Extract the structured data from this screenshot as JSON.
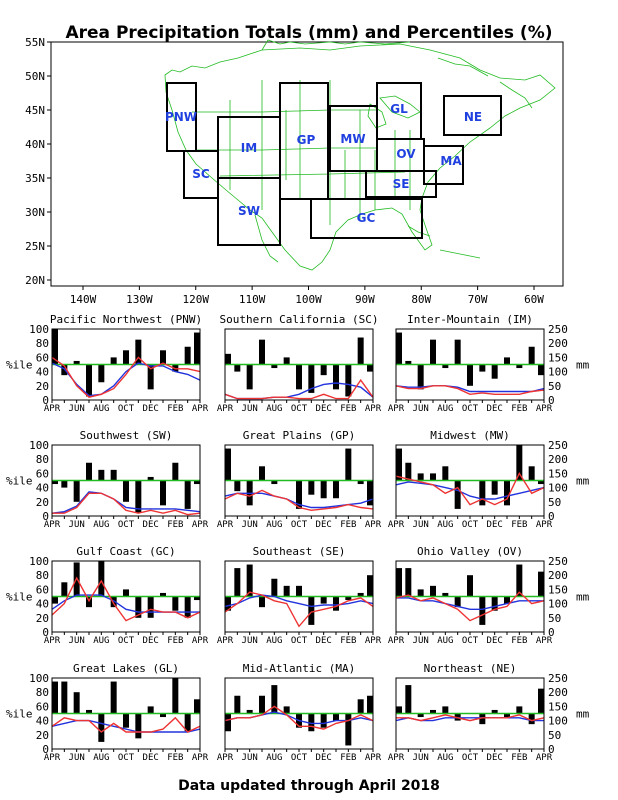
{
  "page": {
    "title": "Area Precipitation Totals (mm) and Percentiles (%)",
    "footer": "Data updated through April 2018"
  },
  "map": {
    "lat_labels": [
      "55N",
      "50N",
      "45N",
      "40N",
      "35N",
      "30N",
      "25N",
      "20N"
    ],
    "lon_labels": [
      "140W",
      "130W",
      "120W",
      "110W",
      "100W",
      "90W",
      "80W",
      "70W",
      "60W"
    ],
    "regions": [
      "PNW",
      "SC",
      "IM",
      "SW",
      "GP",
      "MW",
      "GL",
      "OV",
      "SE",
      "GC",
      "MA",
      "NE"
    ]
  },
  "chart_data": [
    {
      "type": "bar+line",
      "title": "Pacific Northwest (PNW)",
      "ylabel": "%ile",
      "ylabel_right": "mm",
      "ylim": [
        0,
        100
      ],
      "ylim_right": [
        0,
        250
      ],
      "ref_line": 50,
      "x_ticks": [
        "APR",
        "JUN",
        "AUG",
        "OCT",
        "DEC",
        "FEB",
        "APR"
      ],
      "percentile_bars": [
        100,
        35,
        55,
        5,
        25,
        60,
        70,
        85,
        15,
        70,
        40,
        75,
        95
      ],
      "mm_red": [
        150,
        120,
        50,
        10,
        20,
        40,
        90,
        150,
        110,
        130,
        110,
        110,
        100
      ],
      "mm_blue": [
        130,
        110,
        55,
        15,
        20,
        50,
        100,
        130,
        120,
        120,
        100,
        90,
        70
      ]
    },
    {
      "type": "bar+line",
      "title": "Southern California (SC)",
      "ylabel": "%ile",
      "ylabel_right": "mm",
      "ylim": [
        0,
        100
      ],
      "ylim_right": [
        0,
        250
      ],
      "ref_line": 50,
      "x_ticks": [
        "APR",
        "JUN",
        "AUG",
        "OCT",
        "DEC",
        "FEB",
        "APR"
      ],
      "percentile_bars": [
        65,
        40,
        15,
        85,
        45,
        60,
        15,
        10,
        35,
        15,
        5,
        88,
        40
      ],
      "mm_red": [
        20,
        5,
        5,
        5,
        10,
        10,
        5,
        5,
        20,
        5,
        5,
        70,
        10
      ],
      "mm_blue": [
        20,
        5,
        5,
        5,
        10,
        10,
        20,
        40,
        55,
        60,
        55,
        45,
        10
      ]
    },
    {
      "type": "bar+line",
      "title": "Inter-Mountain (IM)",
      "ylabel": "%ile",
      "ylabel_right": "mm",
      "ylim": [
        0,
        100
      ],
      "ylim_right": [
        0,
        250
      ],
      "ref_line": 50,
      "x_ticks": [
        "APR",
        "JUN",
        "AUG",
        "OCT",
        "DEC",
        "FEB",
        "APR"
      ],
      "percentile_bars": [
        95,
        55,
        15,
        85,
        45,
        85,
        20,
        40,
        30,
        60,
        45,
        75,
        35
      ],
      "mm_red": [
        50,
        40,
        40,
        50,
        50,
        40,
        20,
        25,
        20,
        20,
        20,
        30,
        35
      ],
      "mm_blue": [
        50,
        45,
        45,
        50,
        50,
        45,
        30,
        30,
        30,
        30,
        30,
        30,
        40
      ]
    },
    {
      "type": "bar+line",
      "title": "Southwest (SW)",
      "ylabel": "%ile",
      "ylabel_right": "mm",
      "ylim": [
        0,
        100
      ],
      "ylim_right": [
        0,
        250
      ],
      "ref_line": 50,
      "x_ticks": [
        "APR",
        "JUN",
        "AUG",
        "OCT",
        "DEC",
        "FEB",
        "APR"
      ],
      "percentile_bars": [
        45,
        40,
        20,
        75,
        65,
        65,
        20,
        5,
        55,
        15,
        75,
        10,
        45
      ],
      "mm_red": [
        10,
        10,
        30,
        80,
        80,
        60,
        20,
        10,
        20,
        10,
        20,
        5,
        10
      ],
      "mm_blue": [
        10,
        15,
        35,
        85,
        80,
        60,
        30,
        25,
        25,
        25,
        25,
        20,
        15
      ]
    },
    {
      "type": "bar+line",
      "title": "Great Plains (GP)",
      "ylabel": "%ile",
      "ylabel_right": "mm",
      "ylim": [
        0,
        100
      ],
      "ylim_right": [
        0,
        250
      ],
      "ref_line": 50,
      "x_ticks": [
        "APR",
        "JUN",
        "AUG",
        "OCT",
        "DEC",
        "FEB",
        "APR"
      ],
      "percentile_bars": [
        95,
        35,
        15,
        70,
        45,
        50,
        10,
        30,
        25,
        25,
        95,
        45,
        15
      ],
      "mm_red": [
        60,
        80,
        70,
        90,
        70,
        60,
        30,
        20,
        25,
        30,
        40,
        30,
        25
      ],
      "mm_blue": [
        70,
        80,
        80,
        80,
        70,
        60,
        40,
        30,
        30,
        35,
        40,
        45,
        60
      ]
    },
    {
      "type": "bar+line",
      "title": "Midwest (MW)",
      "ylabel": "%ile",
      "ylabel_right": "mm",
      "ylim": [
        0,
        100
      ],
      "ylim_right": [
        0,
        250
      ],
      "ref_line": 50,
      "x_ticks": [
        "APR",
        "JUN",
        "AUG",
        "OCT",
        "DEC",
        "FEB",
        "APR"
      ],
      "percentile_bars": [
        95,
        75,
        60,
        60,
        70,
        10,
        50,
        15,
        30,
        15,
        100,
        70,
        45
      ],
      "mm_red": [
        140,
        130,
        120,
        110,
        80,
        100,
        40,
        60,
        40,
        60,
        150,
        80,
        100
      ],
      "mm_blue": [
        110,
        120,
        115,
        110,
        100,
        90,
        70,
        60,
        60,
        70,
        80,
        90,
        100
      ]
    },
    {
      "type": "bar+line",
      "title": "Gulf Coast (GC)",
      "ylabel": "%ile",
      "ylabel_right": "mm",
      "ylim": [
        0,
        100
      ],
      "ylim_right": [
        0,
        250
      ],
      "ref_line": 50,
      "x_ticks": [
        "APR",
        "JUN",
        "AUG",
        "OCT",
        "DEC",
        "FEB",
        "APR"
      ],
      "percentile_bars": [
        40,
        70,
        98,
        35,
        100,
        35,
        60,
        20,
        20,
        55,
        30,
        20,
        45
      ],
      "mm_red": [
        60,
        100,
        190,
        110,
        180,
        100,
        40,
        60,
        80,
        70,
        70,
        50,
        70
      ],
      "mm_blue": [
        80,
        110,
        130,
        130,
        130,
        110,
        80,
        70,
        70,
        70,
        70,
        70,
        70
      ]
    },
    {
      "type": "bar+line",
      "title": "Southeast (SE)",
      "ylabel": "%ile",
      "ylabel_right": "mm",
      "ylim": [
        0,
        100
      ],
      "ylim_right": [
        0,
        250
      ],
      "ref_line": 50,
      "x_ticks": [
        "APR",
        "JUN",
        "AUG",
        "OCT",
        "DEC",
        "FEB",
        "APR"
      ],
      "percentile_bars": [
        30,
        90,
        95,
        35,
        75,
        65,
        65,
        10,
        40,
        30,
        45,
        55,
        80
      ],
      "mm_red": [
        70,
        100,
        140,
        130,
        110,
        100,
        20,
        70,
        80,
        90,
        110,
        120,
        90
      ],
      "mm_blue": [
        90,
        100,
        120,
        130,
        125,
        110,
        100,
        90,
        95,
        95,
        100,
        110,
        100
      ]
    },
    {
      "type": "bar+line",
      "title": "Ohio Valley (OV)",
      "ylabel": "%ile",
      "ylabel_right": "mm",
      "ylim": [
        0,
        100
      ],
      "ylim_right": [
        0,
        250
      ],
      "ref_line": 50,
      "x_ticks": [
        "APR",
        "JUN",
        "AUG",
        "OCT",
        "DEC",
        "FEB",
        "APR"
      ],
      "percentile_bars": [
        90,
        90,
        60,
        65,
        55,
        35,
        80,
        10,
        30,
        40,
        95,
        50,
        85
      ],
      "mm_red": [
        120,
        130,
        110,
        120,
        100,
        80,
        40,
        60,
        80,
        90,
        140,
        100,
        110
      ],
      "mm_blue": [
        120,
        120,
        110,
        110,
        100,
        90,
        80,
        80,
        90,
        100,
        110,
        110,
        110
      ]
    },
    {
      "type": "bar+line",
      "title": "Great Lakes (GL)",
      "ylabel": "%ile",
      "ylabel_right": "mm",
      "ylim": [
        0,
        100
      ],
      "ylim_right": [
        0,
        250
      ],
      "ref_line": 50,
      "x_ticks": [
        "APR",
        "JUN",
        "AUG",
        "OCT",
        "DEC",
        "FEB",
        "APR"
      ],
      "percentile_bars": [
        95,
        95,
        80,
        55,
        10,
        95,
        30,
        15,
        60,
        45,
        100,
        25,
        70
      ],
      "mm_red": [
        80,
        110,
        100,
        100,
        60,
        90,
        60,
        60,
        60,
        70,
        110,
        60,
        80
      ],
      "mm_blue": [
        80,
        90,
        100,
        100,
        90,
        80,
        70,
        60,
        60,
        60,
        60,
        60,
        70
      ]
    },
    {
      "type": "bar+line",
      "title": "Mid-Atlantic (MA)",
      "ylabel": "%ile",
      "ylabel_right": "mm",
      "ylim": [
        0,
        100
      ],
      "ylim_right": [
        0,
        250
      ],
      "ref_line": 50,
      "x_ticks": [
        "APR",
        "JUN",
        "AUG",
        "OCT",
        "DEC",
        "FEB",
        "APR"
      ],
      "percentile_bars": [
        25,
        75,
        55,
        75,
        90,
        60,
        30,
        25,
        30,
        40,
        5,
        70,
        75
      ],
      "mm_red": [
        100,
        110,
        110,
        120,
        150,
        120,
        80,
        80,
        70,
        90,
        100,
        120,
        100
      ],
      "mm_blue": [
        100,
        110,
        110,
        120,
        130,
        120,
        100,
        90,
        90,
        100,
        100,
        110,
        100
      ]
    },
    {
      "type": "bar+line",
      "title": "Northeast (NE)",
      "ylabel": "%ile",
      "ylabel_right": "mm",
      "ylim": [
        0,
        100
      ],
      "ylim_right": [
        0,
        250
      ],
      "ref_line": 50,
      "x_ticks": [
        "APR",
        "JUN",
        "AUG",
        "OCT",
        "DEC",
        "FEB",
        "APR"
      ],
      "percentile_bars": [
        60,
        90,
        45,
        55,
        60,
        40,
        50,
        35,
        55,
        45,
        60,
        35,
        85
      ],
      "mm_red": [
        110,
        110,
        100,
        110,
        120,
        110,
        100,
        110,
        110,
        110,
        120,
        100,
        110
      ],
      "mm_blue": [
        100,
        110,
        100,
        100,
        110,
        110,
        110,
        110,
        110,
        110,
        110,
        100,
        100
      ]
    }
  ]
}
